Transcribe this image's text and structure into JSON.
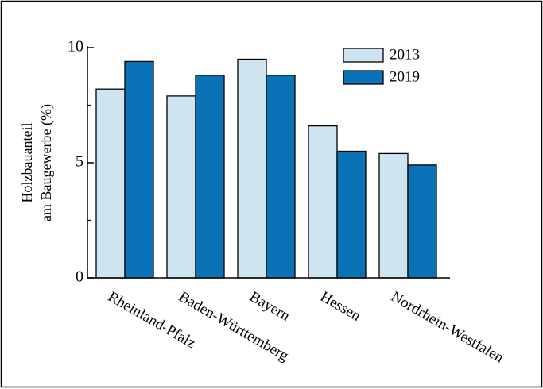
{
  "chart_data": {
    "type": "bar",
    "title": "",
    "ylabel_line1": "Holzbauanteil",
    "ylabel_line2": "am Baugewerbe (%)",
    "xlabel": "",
    "categories": [
      "Rheinland-Pfalz",
      "Baden-Württemberg",
      "Bayern",
      "Hessen",
      "Nordrhein-Westfalen"
    ],
    "series": [
      {
        "name": "2013",
        "values": [
          8.2,
          7.9,
          9.5,
          6.6,
          5.4
        ],
        "color": "#cfe4f1"
      },
      {
        "name": "2019",
        "values": [
          9.4,
          8.8,
          8.8,
          5.5,
          4.9
        ],
        "color": "#0a72b7"
      }
    ],
    "ylim": [
      0,
      10
    ],
    "yticks": [
      0,
      5,
      10
    ],
    "yticks_minor": [
      2.5,
      7.5
    ],
    "grid": false,
    "legend_position": "top-right"
  }
}
